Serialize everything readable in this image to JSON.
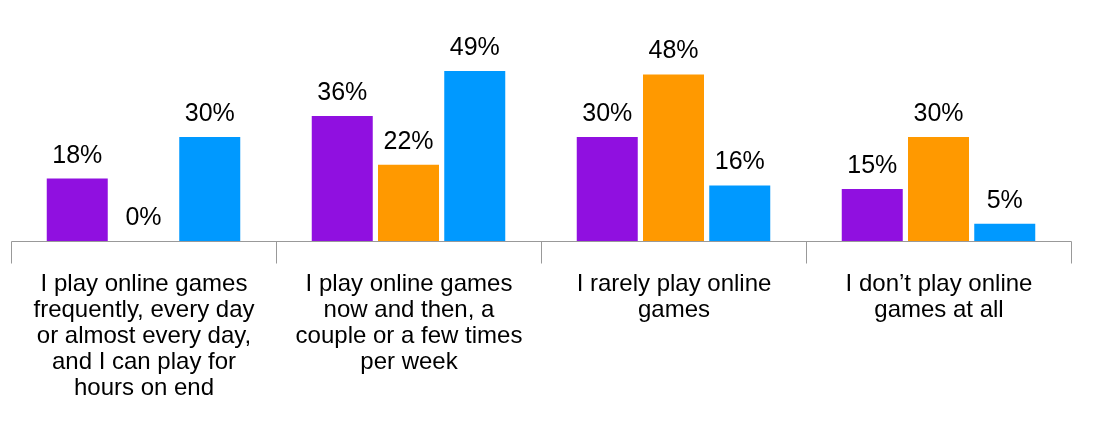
{
  "chart_data": {
    "type": "bar",
    "categories": [
      "I play online games frequently, every day or almost every day, and I can play for hours on end",
      "I play online games now and then, a couple or a few times per week",
      "I rarely play online games",
      "I don’t play online games at all"
    ],
    "series": [
      {
        "color": "#9010e0",
        "values": [
          18,
          36,
          30,
          15
        ],
        "value_labels": [
          "18%",
          "36%",
          "30%",
          "15%"
        ]
      },
      {
        "color": "#ff9900",
        "values": [
          0,
          22,
          48,
          30
        ],
        "value_labels": [
          "0%",
          "22%",
          "48%",
          "30%"
        ]
      },
      {
        "color": "#0099ff",
        "values": [
          30,
          49,
          16,
          5
        ],
        "value_labels": [
          "30%",
          "49%",
          "16%",
          "5%"
        ]
      }
    ],
    "grid": false,
    "legend": false,
    "tick_labels": "x"
  }
}
